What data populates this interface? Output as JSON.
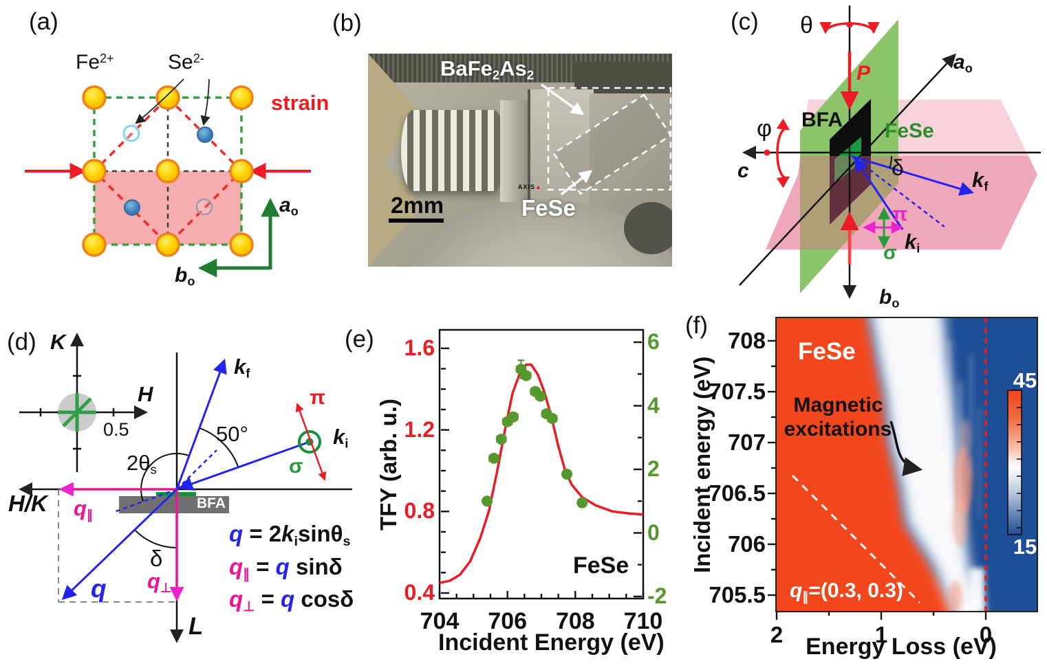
{
  "panels": {
    "a": {
      "tag": "(a)",
      "fe": "Fe",
      "fe_sup": "2+",
      "se": "Se",
      "se_sup": "2-",
      "strain": "strain",
      "a_axis": "a",
      "a_sub": "o",
      "b_axis": "b",
      "b_sub": "o"
    },
    "b": {
      "tag": "(b)",
      "crystal_ba": "BaFe",
      "crystal_sub1": "2",
      "crystal_as": "As",
      "crystal_sub2": "2",
      "fese": "FeSe",
      "scale": "2mm",
      "logo": "AXIS"
    },
    "c": {
      "tag": "(c)",
      "theta": "θ",
      "phi": "φ",
      "p": "P",
      "bfa": "BFA",
      "fese": "FeSe",
      "a_axis": "a",
      "a_sub": "o",
      "b_axis": "b",
      "b_sub": "o",
      "c_axis": "c",
      "delta": "δ",
      "k": "k",
      "kf_sub": "f",
      "ki_sub": "i",
      "pi": "π",
      "sigma": "σ"
    },
    "d": {
      "tag": "(d)",
      "K": "K",
      "H": "H",
      "half": "0.5",
      "k": "k",
      "kf_sub": "f",
      "ki_sub": "i",
      "angle50": "50°",
      "two_theta": "2θ",
      "two_theta_sub": "s",
      "hk": "H/K",
      "L": "L",
      "q": "q",
      "par": "∥",
      "perp": "⊥",
      "delta": "δ",
      "bfa": "BFA",
      "pi": "π",
      "sigma": "σ",
      "eq1": {
        "q": "q",
        "mid": " = 2",
        "k": "k",
        "ksub": "i",
        "fn": "sinθ",
        "fnsub": "s"
      },
      "eq2": {
        "q": "q",
        "qsub": "∥",
        "eq": " = ",
        "q2": "q",
        "fn": " sinδ"
      },
      "eq3": {
        "q": "q",
        "qsub": "⊥",
        "eq": " = ",
        "q2": "q",
        "fn": " cosδ"
      }
    },
    "e": {
      "tag": "(e)",
      "sample": "FeSe"
    },
    "f": {
      "tag": "(f)",
      "sample": "FeSe",
      "note_line1": "Magnetic",
      "note_line2": "excitations",
      "q": "q",
      "q_sub": "∥",
      "q_val": "=(0.3, 0.3)"
    }
  },
  "colors": {
    "accent_red": "#ed1c24",
    "point_green": "#55982e",
    "magenta": "#ee1490",
    "blue": "#2323ee",
    "heat_high": "#f2461f",
    "heat_low": "#1e4e96",
    "pink_plane": "#f8d3dc",
    "green_plane": "#8cc46c",
    "fese_green": "#189a40",
    "atom_gold": "#ffd60a",
    "atom_rim": "#f08019"
  },
  "chart_data": [
    {
      "type": "scatter",
      "panel": "e",
      "xlabel": "Incident Energy (eV)",
      "ylabel_left": "TFY (arb. u.)",
      "xlim": [
        704,
        710
      ],
      "ylim_left": [
        0.4,
        1.69
      ],
      "ylim_right": [
        -2,
        6.2
      ],
      "xticks": [
        704,
        706,
        708,
        710
      ],
      "yticks_left": [
        0.4,
        0.8,
        1.2,
        1.6
      ],
      "yticks_right": [
        -2,
        0,
        2,
        4,
        6
      ],
      "annotation": "FeSe",
      "series": [
        {
          "name": "TFY fit",
          "type": "line",
          "axis": "left",
          "color": "#ed1c24",
          "points": [
            [
              704,
              0.45
            ],
            [
              704.3,
              0.46
            ],
            [
              704.6,
              0.49
            ],
            [
              704.9,
              0.555
            ],
            [
              705.2,
              0.67
            ],
            [
              705.45,
              0.8
            ],
            [
              705.7,
              1.0
            ],
            [
              705.95,
              1.22
            ],
            [
              706.15,
              1.38
            ],
            [
              706.35,
              1.47
            ],
            [
              706.55,
              1.52
            ],
            [
              706.7,
              1.52
            ],
            [
              706.9,
              1.47
            ],
            [
              707.1,
              1.38
            ],
            [
              707.3,
              1.26
            ],
            [
              707.5,
              1.12
            ],
            [
              707.7,
              1.0
            ],
            [
              707.9,
              0.93
            ],
            [
              708.2,
              0.87
            ],
            [
              708.6,
              0.83
            ],
            [
              709.1,
              0.8
            ],
            [
              709.6,
              0.79
            ],
            [
              710,
              0.785
            ]
          ]
        },
        {
          "name": "RIXS intensity",
          "type": "scatter",
          "axis": "right",
          "color": "#55982e",
          "xerr": 0.13,
          "points": [
            [
              705.4,
              1.0
            ],
            [
              705.6,
              2.35
            ],
            [
              705.82,
              2.95
            ],
            [
              706.0,
              3.5
            ],
            [
              706.17,
              3.65
            ],
            [
              706.4,
              5.15
            ],
            [
              706.55,
              4.95
            ],
            [
              706.82,
              4.45
            ],
            [
              706.97,
              4.3
            ],
            [
              707.15,
              3.75
            ],
            [
              707.32,
              3.6
            ],
            [
              707.75,
              1.85
            ],
            [
              708.2,
              0.95
            ]
          ]
        }
      ]
    },
    {
      "type": "heatmap",
      "panel": "f",
      "xlabel": "Energy Loss (eV)",
      "ylabel": "Incident energy (eV)",
      "xlim": [
        2,
        -0.5
      ],
      "ylim": [
        705.4,
        708.2
      ],
      "xticks": [
        2,
        1,
        0
      ],
      "yticks": [
        708,
        707.5,
        707,
        706.5,
        706,
        705.5
      ],
      "colorbar": {
        "max": 45,
        "min": 15
      },
      "annotations": [
        "FeSe",
        "Magnetic excitations",
        "q∥=(0.3, 0.3)"
      ],
      "features": {
        "zero_loss_line": 0,
        "momentum_transfer": "(0.3, 0.3)"
      }
    }
  ]
}
